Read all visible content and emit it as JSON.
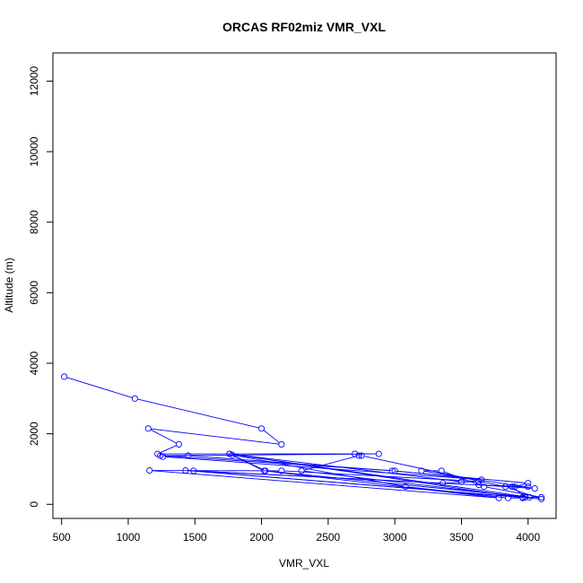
{
  "chart_data": {
    "type": "line",
    "title": "ORCAS RF02miz VMR_VXL",
    "xlabel": "VMR_VXL",
    "ylabel": "Altitude (m)",
    "xlim": [
      435,
      4210
    ],
    "ylim": [
      -400,
      12800
    ],
    "x_ticks": [
      500,
      1000,
      1500,
      2000,
      2500,
      3000,
      3500,
      4000
    ],
    "y_ticks": [
      0,
      2000,
      4000,
      6000,
      8000,
      10000,
      12000
    ],
    "x_tick_labels": [
      "500",
      "1000",
      "1500",
      "2000",
      "2500",
      "3000",
      "3500",
      "4000"
    ],
    "y_tick_labels": [
      "0",
      "2000",
      "4000",
      "6000",
      "8000",
      "10000",
      "12000"
    ],
    "grid": false,
    "markers": "open-circle",
    "series": [
      {
        "color": "#0000ff",
        "points": [
          [
            520,
            3620
          ],
          [
            1050,
            3000
          ],
          [
            2000,
            2150
          ],
          [
            2150,
            1700
          ],
          [
            1150,
            2150
          ],
          [
            1380,
            1700
          ],
          [
            1220,
            1430
          ],
          [
            2700,
            1430
          ],
          [
            2880,
            1430
          ],
          [
            1240,
            1380
          ],
          [
            3000,
            950
          ],
          [
            3650,
            700
          ],
          [
            1260,
            1350
          ],
          [
            1450,
            1380
          ],
          [
            2980,
            950
          ],
          [
            4000,
            600
          ],
          [
            3900,
            500
          ],
          [
            4000,
            500
          ],
          [
            3630,
            550
          ],
          [
            4050,
            450
          ],
          [
            3200,
            950
          ],
          [
            3350,
            950
          ],
          [
            3670,
            500
          ],
          [
            4100,
            200
          ],
          [
            3960,
            200
          ],
          [
            1430,
            960
          ],
          [
            3880,
            500
          ],
          [
            3980,
            200
          ],
          [
            2300,
            950
          ],
          [
            2730,
            1380
          ],
          [
            2750,
            1380
          ],
          [
            3830,
            500
          ],
          [
            4100,
            150
          ],
          [
            1490,
            950
          ],
          [
            3360,
            600
          ],
          [
            3630,
            650
          ],
          [
            2150,
            950
          ],
          [
            1160,
            960
          ],
          [
            3780,
            180
          ],
          [
            2020,
            950
          ],
          [
            1760,
            1430
          ],
          [
            3960,
            180
          ],
          [
            3850,
            180
          ],
          [
            3080,
            500
          ],
          [
            1780,
            1400
          ],
          [
            2030,
            950
          ],
          [
            4010,
            200
          ],
          [
            1760,
            1430
          ],
          [
            3500,
            640
          ]
        ]
      }
    ]
  }
}
